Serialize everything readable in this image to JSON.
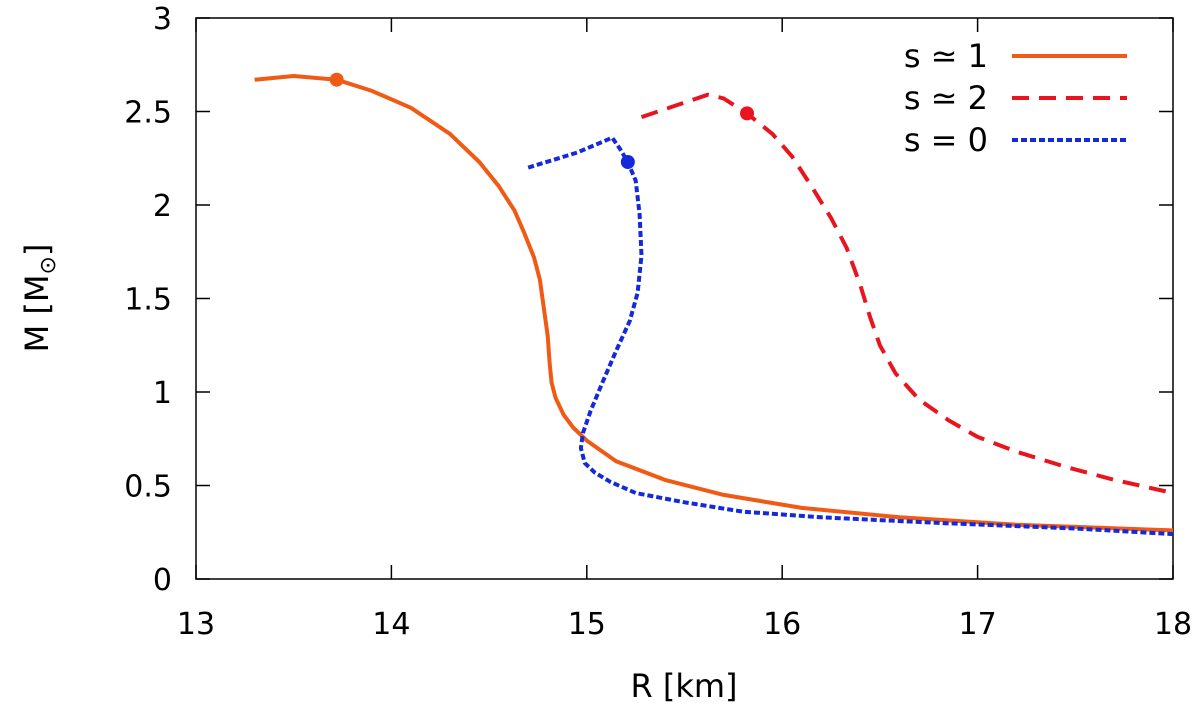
{
  "chart_data": {
    "type": "line",
    "xlabel": "R [km]",
    "ylabel_main": "M [M",
    "ylabel_sub": "⊙",
    "ylabel_close": "]",
    "xlim": [
      13,
      18
    ],
    "ylim": [
      0,
      3
    ],
    "xticks": [
      13,
      14,
      15,
      16,
      17,
      18
    ],
    "yticks": [
      0,
      0.5,
      1,
      1.5,
      2,
      2.5,
      3
    ],
    "xtick_labels": [
      "13",
      "14",
      "15",
      "16",
      "17",
      "18"
    ],
    "ytick_labels": [
      "0",
      "0.5",
      "1",
      "1.5",
      "2",
      "2.5",
      "3"
    ],
    "legend_position": "top-right",
    "series": [
      {
        "name": "s ≃ 1",
        "color": "#f05a14",
        "dash": "solid",
        "marker": {
          "x": 13.72,
          "y": 2.67
        },
        "x": [
          13.3,
          13.5,
          13.72,
          13.9,
          14.1,
          14.3,
          14.45,
          14.55,
          14.63,
          14.68,
          14.73,
          14.76,
          14.78,
          14.8,
          14.81,
          14.82,
          14.84,
          14.88,
          14.93,
          15.0,
          15.15,
          15.4,
          15.7,
          16.1,
          16.6,
          17.2,
          18.0
        ],
        "y": [
          2.67,
          2.69,
          2.67,
          2.61,
          2.52,
          2.38,
          2.23,
          2.1,
          1.97,
          1.85,
          1.72,
          1.6,
          1.45,
          1.3,
          1.15,
          1.05,
          0.97,
          0.88,
          0.81,
          0.74,
          0.63,
          0.53,
          0.45,
          0.38,
          0.33,
          0.29,
          0.26
        ]
      },
      {
        "name": "s ≃ 2",
        "color": "#e8141e",
        "dash": "dashed",
        "marker": {
          "x": 15.82,
          "y": 2.49
        },
        "x": [
          15.28,
          15.45,
          15.62,
          15.7,
          15.82,
          15.95,
          16.05,
          16.15,
          16.25,
          16.33,
          16.4,
          16.45,
          16.5,
          16.58,
          16.7,
          16.85,
          17.0,
          17.2,
          17.45,
          17.7,
          18.0
        ],
        "y": [
          2.47,
          2.53,
          2.59,
          2.57,
          2.49,
          2.38,
          2.26,
          2.1,
          1.93,
          1.77,
          1.57,
          1.4,
          1.25,
          1.1,
          0.96,
          0.85,
          0.76,
          0.68,
          0.6,
          0.53,
          0.46
        ]
      },
      {
        "name": "s = 0",
        "color": "#1428dc",
        "dash": "dotted",
        "marker": {
          "x": 15.21,
          "y": 2.23
        },
        "x": [
          14.7,
          14.95,
          15.13,
          15.17,
          15.21,
          15.25,
          15.27,
          15.28,
          15.26,
          15.22,
          15.15,
          15.08,
          15.02,
          14.98,
          14.97,
          14.99,
          15.04,
          15.12,
          15.25,
          15.5,
          15.8,
          16.2,
          16.8,
          17.5,
          18.0
        ],
        "y": [
          2.2,
          2.28,
          2.36,
          2.3,
          2.23,
          2.13,
          1.95,
          1.73,
          1.53,
          1.38,
          1.22,
          1.05,
          0.9,
          0.78,
          0.7,
          0.62,
          0.57,
          0.52,
          0.46,
          0.41,
          0.36,
          0.33,
          0.3,
          0.27,
          0.24
        ]
      }
    ]
  }
}
